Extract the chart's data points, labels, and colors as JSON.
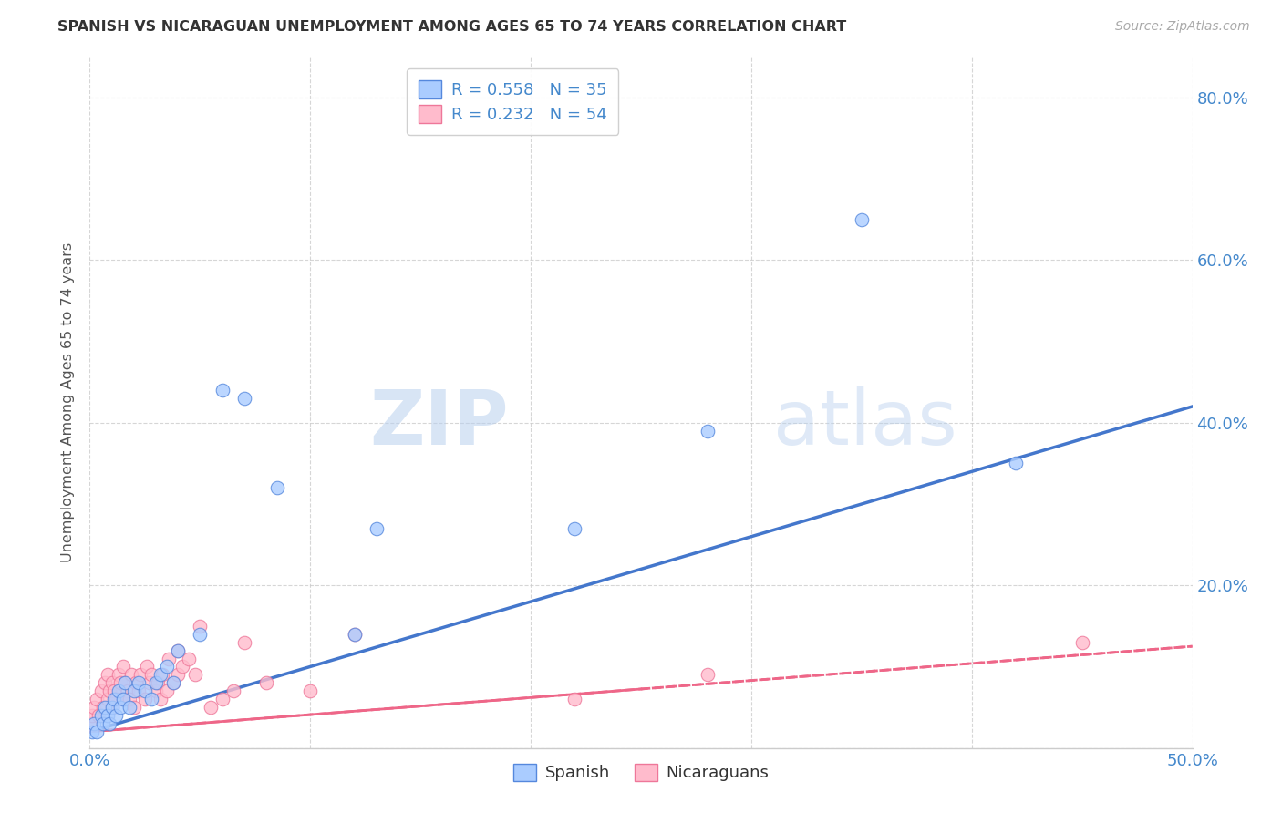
{
  "title": "SPANISH VS NICARAGUAN UNEMPLOYMENT AMONG AGES 65 TO 74 YEARS CORRELATION CHART",
  "source": "Source: ZipAtlas.com",
  "ylabel": "Unemployment Among Ages 65 to 74 years",
  "xlim": [
    0.0,
    0.5
  ],
  "ylim": [
    0.0,
    0.85
  ],
  "xticks": [
    0.0,
    0.1,
    0.2,
    0.3,
    0.4,
    0.5
  ],
  "xticklabels": [
    "0.0%",
    "",
    "",
    "",
    "",
    "50.0%"
  ],
  "yticks": [
    0.0,
    0.2,
    0.4,
    0.6,
    0.8
  ],
  "yticklabels": [
    "",
    "20.0%",
    "40.0%",
    "60.0%",
    "80.0%"
  ],
  "spanish_color": "#aaccff",
  "nicaraguan_color": "#ffbbcc",
  "spanish_edge_color": "#5588dd",
  "nicaraguan_edge_color": "#ee7799",
  "spanish_line_color": "#4477cc",
  "nicaraguan_line_color": "#ee6688",
  "legend_line1": "R = 0.558   N = 35",
  "legend_line2": "R = 0.232   N = 54",
  "watermark_zip": "ZIP",
  "watermark_atlas": "atlas",
  "spanish_points_x": [
    0.001,
    0.002,
    0.003,
    0.005,
    0.006,
    0.007,
    0.008,
    0.009,
    0.01,
    0.011,
    0.012,
    0.013,
    0.014,
    0.015,
    0.016,
    0.018,
    0.02,
    0.022,
    0.025,
    0.028,
    0.03,
    0.032,
    0.035,
    0.038,
    0.04,
    0.05,
    0.06,
    0.07,
    0.085,
    0.12,
    0.13,
    0.22,
    0.28,
    0.35,
    0.42
  ],
  "spanish_points_y": [
    0.02,
    0.03,
    0.02,
    0.04,
    0.03,
    0.05,
    0.04,
    0.03,
    0.05,
    0.06,
    0.04,
    0.07,
    0.05,
    0.06,
    0.08,
    0.05,
    0.07,
    0.08,
    0.07,
    0.06,
    0.08,
    0.09,
    0.1,
    0.08,
    0.12,
    0.14,
    0.44,
    0.43,
    0.32,
    0.14,
    0.27,
    0.27,
    0.39,
    0.65,
    0.35
  ],
  "nicaraguan_points_x": [
    0.0,
    0.001,
    0.002,
    0.003,
    0.004,
    0.005,
    0.006,
    0.007,
    0.008,
    0.008,
    0.009,
    0.01,
    0.01,
    0.011,
    0.012,
    0.013,
    0.014,
    0.015,
    0.015,
    0.016,
    0.017,
    0.018,
    0.019,
    0.02,
    0.021,
    0.022,
    0.023,
    0.025,
    0.026,
    0.027,
    0.028,
    0.03,
    0.031,
    0.032,
    0.033,
    0.035,
    0.036,
    0.038,
    0.04,
    0.04,
    0.042,
    0.045,
    0.048,
    0.05,
    0.055,
    0.06,
    0.065,
    0.07,
    0.08,
    0.1,
    0.12,
    0.22,
    0.28,
    0.45
  ],
  "nicaraguan_points_y": [
    0.03,
    0.04,
    0.05,
    0.06,
    0.04,
    0.07,
    0.05,
    0.08,
    0.06,
    0.09,
    0.07,
    0.05,
    0.08,
    0.07,
    0.06,
    0.09,
    0.08,
    0.06,
    0.1,
    0.08,
    0.07,
    0.06,
    0.09,
    0.05,
    0.08,
    0.07,
    0.09,
    0.06,
    0.1,
    0.08,
    0.09,
    0.07,
    0.08,
    0.06,
    0.09,
    0.07,
    0.11,
    0.08,
    0.09,
    0.12,
    0.1,
    0.11,
    0.09,
    0.15,
    0.05,
    0.06,
    0.07,
    0.13,
    0.08,
    0.07,
    0.14,
    0.06,
    0.09,
    0.13
  ],
  "background_color": "#ffffff",
  "grid_color": "#cccccc",
  "tick_color": "#4488cc",
  "spine_color": "#cccccc",
  "title_color": "#333333",
  "source_color": "#aaaaaa",
  "ylabel_color": "#555555"
}
